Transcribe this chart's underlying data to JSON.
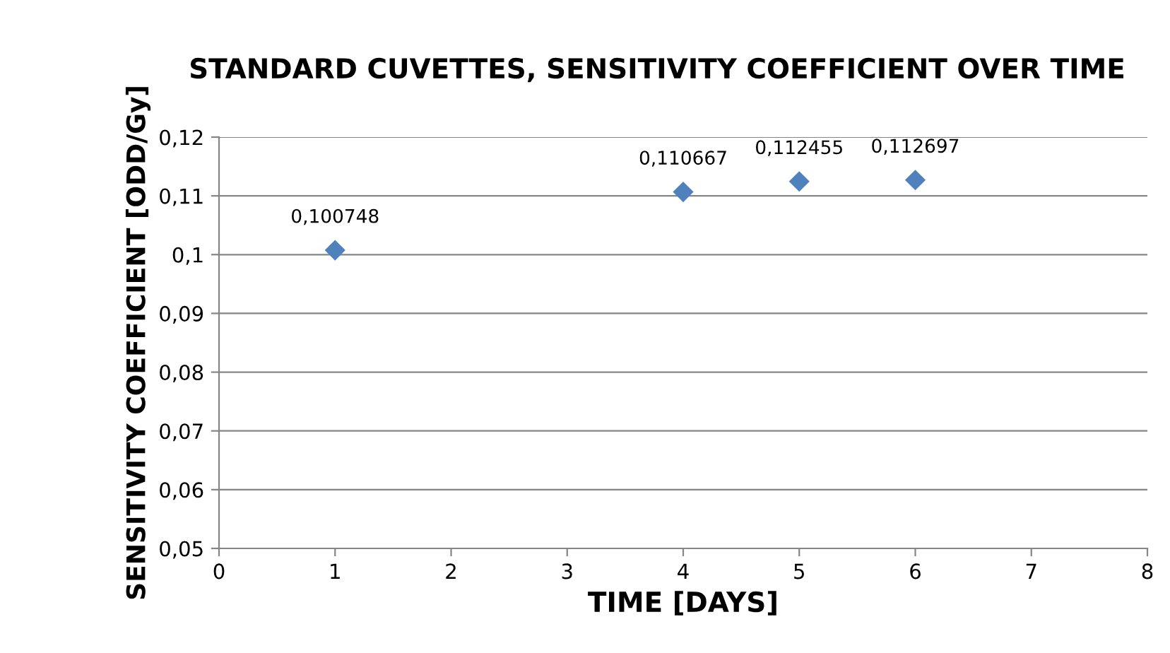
{
  "chart_data": {
    "type": "scatter",
    "title": "STANDARD CUVETTES, SENSITIVITY COEFFICIENT OVER TIME",
    "xlabel": "TIME [DAYS]",
    "ylabel": "SENSITIVITY COEFFICIENT [ODD/Gy]",
    "x": [
      1,
      4,
      5,
      6
    ],
    "values": [
      0.100748,
      0.110667,
      0.112455,
      0.112697
    ],
    "value_labels": [
      "0,100748",
      "0,110667",
      "0,112455",
      "0,112697"
    ],
    "color": "#4f81bd",
    "marker": "diamond",
    "xlim": [
      0,
      8
    ],
    "xticks": [
      0,
      1,
      2,
      3,
      4,
      5,
      6,
      7,
      8
    ],
    "ylim": [
      0.05,
      0.12
    ],
    "yticks": [
      {
        "value": 0.05,
        "label": "0,05"
      },
      {
        "value": 0.06,
        "label": "0,06"
      },
      {
        "value": 0.07,
        "label": "0,07"
      },
      {
        "value": 0.08,
        "label": "0,08"
      },
      {
        "value": 0.09,
        "label": "0,09"
      },
      {
        "value": 0.1,
        "label": "0,1"
      },
      {
        "value": 0.11,
        "label": "0,11"
      },
      {
        "value": 0.12,
        "label": "0,12"
      }
    ],
    "grid": "y",
    "legend": false
  }
}
